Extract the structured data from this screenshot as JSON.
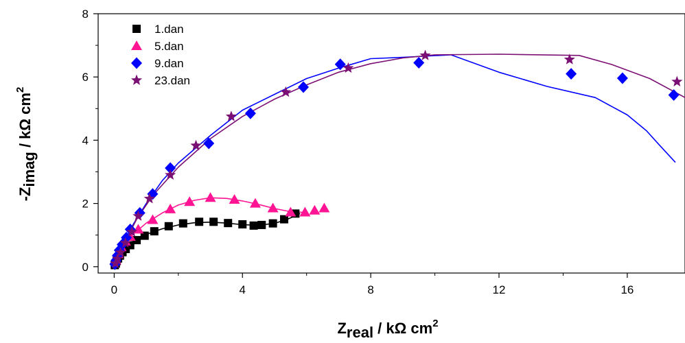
{
  "chart_data": {
    "type": "scatter",
    "title": "",
    "xlabel": {
      "main": "Z",
      "sub": "real",
      "rest": " / kΩ cm",
      "sup": "2"
    },
    "ylabel": {
      "main": "-Z",
      "sub": "imag",
      "rest": " / kΩ  cm",
      "sup": "2"
    },
    "xlim": [
      -0.5,
      17.8
    ],
    "ylim": [
      -0.2,
      8
    ],
    "xticks": [
      0,
      4,
      8,
      12,
      16
    ],
    "yticks": [
      0,
      2,
      4,
      6,
      8
    ],
    "xtick_labels": [
      "0",
      "4",
      "8",
      "12",
      "16"
    ],
    "ytick_labels": [
      "0",
      "2",
      "4",
      "6",
      "8"
    ],
    "legend_position": "top-left",
    "series": [
      {
        "name": "1.dan",
        "marker": "square",
        "color": "#000000",
        "points": [
          [
            0.02,
            0.05
          ],
          [
            0.05,
            0.1
          ],
          [
            0.08,
            0.18
          ],
          [
            0.12,
            0.26
          ],
          [
            0.18,
            0.35
          ],
          [
            0.26,
            0.46
          ],
          [
            0.36,
            0.56
          ],
          [
            0.5,
            0.68
          ],
          [
            0.7,
            0.84
          ],
          [
            0.95,
            0.98
          ],
          [
            1.25,
            1.12
          ],
          [
            1.7,
            1.28
          ],
          [
            2.15,
            1.37
          ],
          [
            2.65,
            1.42
          ],
          [
            3.1,
            1.42
          ],
          [
            3.55,
            1.38
          ],
          [
            4.0,
            1.34
          ],
          [
            4.35,
            1.3
          ],
          [
            4.6,
            1.32
          ],
          [
            4.95,
            1.37
          ],
          [
            5.3,
            1.5
          ],
          [
            5.65,
            1.68
          ]
        ],
        "fit": [
          [
            0,
            0
          ],
          [
            0.1,
            0.24
          ],
          [
            0.3,
            0.52
          ],
          [
            0.6,
            0.8
          ],
          [
            1.0,
            1.02
          ],
          [
            1.5,
            1.2
          ],
          [
            2.0,
            1.32
          ],
          [
            2.5,
            1.39
          ],
          [
            3.0,
            1.41
          ],
          [
            3.5,
            1.38
          ],
          [
            4.0,
            1.33
          ],
          [
            4.5,
            1.31
          ],
          [
            5.0,
            1.37
          ],
          [
            5.4,
            1.5
          ],
          [
            5.8,
            1.68
          ]
        ]
      },
      {
        "name": "5.dan",
        "marker": "triangle",
        "color": "#ff1493",
        "points": [
          [
            0.05,
            0.2
          ],
          [
            0.12,
            0.4
          ],
          [
            0.22,
            0.62
          ],
          [
            0.35,
            0.8
          ],
          [
            0.5,
            0.95
          ],
          [
            0.75,
            1.18
          ],
          [
            1.2,
            1.48
          ],
          [
            1.75,
            1.82
          ],
          [
            2.35,
            2.05
          ],
          [
            3.0,
            2.18
          ],
          [
            3.75,
            2.12
          ],
          [
            4.4,
            2.0
          ],
          [
            4.95,
            1.85
          ],
          [
            5.5,
            1.72
          ],
          [
            5.95,
            1.72
          ],
          [
            6.25,
            1.78
          ],
          [
            6.55,
            1.85
          ]
        ],
        "fit": [
          [
            0,
            0
          ],
          [
            0.2,
            0.55
          ],
          [
            0.5,
            0.95
          ],
          [
            1.0,
            1.38
          ],
          [
            1.5,
            1.7
          ],
          [
            2.0,
            1.95
          ],
          [
            2.5,
            2.1
          ],
          [
            3.0,
            2.18
          ],
          [
            3.5,
            2.16
          ],
          [
            4.0,
            2.08
          ],
          [
            4.5,
            1.97
          ],
          [
            5.0,
            1.84
          ],
          [
            5.5,
            1.74
          ],
          [
            5.9,
            1.72
          ]
        ]
      },
      {
        "name": "9.dan",
        "marker": "diamond",
        "color": "#0000ff",
        "points": [
          [
            0.02,
            0.08
          ],
          [
            0.06,
            0.2
          ],
          [
            0.1,
            0.35
          ],
          [
            0.16,
            0.52
          ],
          [
            0.25,
            0.7
          ],
          [
            0.38,
            0.92
          ],
          [
            0.5,
            1.18
          ],
          [
            0.8,
            1.7
          ],
          [
            1.2,
            2.3
          ],
          [
            1.75,
            3.12
          ],
          [
            2.95,
            3.9
          ],
          [
            4.25,
            4.85
          ],
          [
            5.9,
            5.68
          ],
          [
            7.05,
            6.4
          ],
          [
            9.5,
            6.45
          ],
          [
            14.25,
            6.1
          ],
          [
            15.85,
            5.96
          ],
          [
            17.45,
            5.43
          ]
        ],
        "fit": [
          [
            0,
            0
          ],
          [
            0.2,
            0.55
          ],
          [
            0.6,
            1.35
          ],
          [
            1.0,
            2.0
          ],
          [
            1.5,
            2.72
          ],
          [
            2.0,
            3.28
          ],
          [
            3.0,
            4.15
          ],
          [
            4.0,
            4.95
          ],
          [
            5.0,
            5.45
          ],
          [
            6.0,
            5.95
          ],
          [
            7.0,
            6.28
          ],
          [
            8.0,
            6.58
          ],
          [
            9.0,
            6.62
          ],
          [
            10.5,
            6.7
          ],
          [
            12.0,
            6.15
          ],
          [
            13.5,
            5.7
          ],
          [
            15.0,
            5.35
          ],
          [
            16.0,
            4.8
          ],
          [
            16.6,
            4.3
          ],
          [
            17.0,
            3.85
          ],
          [
            17.5,
            3.3
          ]
        ]
      },
      {
        "name": "23.dan",
        "marker": "star",
        "color": "#7b0f73",
        "points": [
          [
            0.04,
            0.1
          ],
          [
            0.1,
            0.25
          ],
          [
            0.2,
            0.45
          ],
          [
            0.35,
            0.75
          ],
          [
            0.55,
            1.1
          ],
          [
            0.75,
            1.6
          ],
          [
            1.1,
            2.15
          ],
          [
            1.75,
            2.9
          ],
          [
            2.55,
            3.83
          ],
          [
            3.65,
            4.75
          ],
          [
            5.35,
            5.52
          ],
          [
            7.3,
            6.28
          ],
          [
            9.7,
            6.68
          ],
          [
            14.2,
            6.55
          ],
          [
            17.55,
            5.85
          ]
        ],
        "fit": [
          [
            0,
            0
          ],
          [
            0.3,
            0.72
          ],
          [
            0.7,
            1.5
          ],
          [
            1.2,
            2.25
          ],
          [
            2.0,
            3.15
          ],
          [
            3.0,
            4.05
          ],
          [
            4.0,
            4.75
          ],
          [
            5.0,
            5.3
          ],
          [
            6.0,
            5.75
          ],
          [
            7.0,
            6.15
          ],
          [
            8.0,
            6.42
          ],
          [
            9.0,
            6.6
          ],
          [
            10.0,
            6.7
          ],
          [
            12.0,
            6.72
          ],
          [
            14.5,
            6.68
          ],
          [
            15.5,
            6.4
          ],
          [
            16.7,
            5.95
          ],
          [
            17.8,
            5.35
          ]
        ]
      }
    ]
  }
}
